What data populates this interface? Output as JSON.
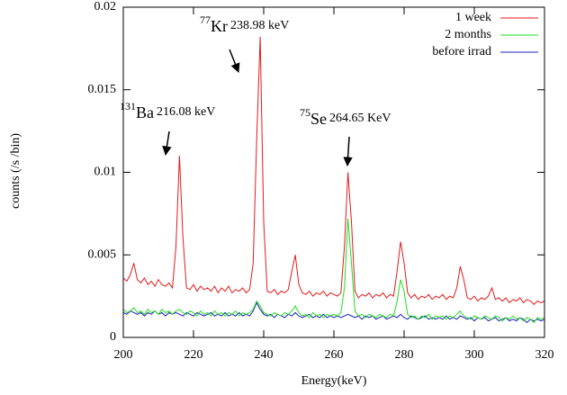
{
  "chart_data": {
    "type": "line",
    "x": [
      200,
      201,
      202,
      203,
      204,
      205,
      206,
      207,
      208,
      209,
      210,
      211,
      212,
      213,
      214,
      215,
      216,
      217,
      218,
      219,
      220,
      221,
      222,
      223,
      224,
      225,
      226,
      227,
      228,
      229,
      230,
      231,
      232,
      233,
      234,
      235,
      236,
      237,
      238,
      239,
      240,
      241,
      242,
      243,
      244,
      245,
      246,
      247,
      248,
      249,
      250,
      251,
      252,
      253,
      254,
      255,
      256,
      257,
      258,
      259,
      260,
      261,
      262,
      263,
      264,
      265,
      266,
      267,
      268,
      269,
      270,
      271,
      272,
      273,
      274,
      275,
      276,
      277,
      278,
      279,
      280,
      281,
      282,
      283,
      284,
      285,
      286,
      287,
      288,
      289,
      290,
      291,
      292,
      293,
      294,
      295,
      296,
      297,
      298,
      299,
      300,
      301,
      302,
      303,
      304,
      305,
      306,
      307,
      308,
      309,
      310,
      311,
      312,
      313,
      314,
      315,
      316,
      317,
      318,
      319,
      320
    ],
    "series": [
      {
        "name": "1 week",
        "color": "#e41a1c",
        "values": [
          0.0036,
          0.0034,
          0.0038,
          0.0045,
          0.0035,
          0.0033,
          0.0036,
          0.0032,
          0.0034,
          0.0031,
          0.0035,
          0.0032,
          0.0031,
          0.0033,
          0.003,
          0.0055,
          0.011,
          0.006,
          0.003,
          0.0029,
          0.0032,
          0.0028,
          0.0031,
          0.0029,
          0.003,
          0.0028,
          0.0031,
          0.0027,
          0.003,
          0.0028,
          0.0031,
          0.0027,
          0.0029,
          0.0028,
          0.003,
          0.0027,
          0.0029,
          0.0045,
          0.012,
          0.0182,
          0.007,
          0.0028,
          0.0027,
          0.0029,
          0.0026,
          0.0028,
          0.0027,
          0.0029,
          0.004,
          0.005,
          0.0032,
          0.0027,
          0.0026,
          0.0028,
          0.0025,
          0.0027,
          0.0026,
          0.0028,
          0.0025,
          0.0027,
          0.0026,
          0.0025,
          0.0027,
          0.0055,
          0.01,
          0.007,
          0.0028,
          0.0024,
          0.0026,
          0.0025,
          0.0027,
          0.0024,
          0.0026,
          0.0025,
          0.0027,
          0.0024,
          0.0026,
          0.0025,
          0.004,
          0.0058,
          0.0045,
          0.0027,
          0.0024,
          0.0026,
          0.0023,
          0.0025,
          0.0024,
          0.0026,
          0.0023,
          0.0025,
          0.0024,
          0.0026,
          0.0023,
          0.0025,
          0.0024,
          0.003,
          0.0043,
          0.0035,
          0.0024,
          0.0023,
          0.0025,
          0.0022,
          0.0024,
          0.0023,
          0.0025,
          0.003,
          0.0023,
          0.0024,
          0.0022,
          0.0024,
          0.0021,
          0.0023,
          0.0022,
          0.0024,
          0.0021,
          0.0023,
          0.0022,
          0.002,
          0.0022,
          0.0021,
          0.0022
        ]
      },
      {
        "name": "2 months",
        "color": "#22dd22",
        "values": [
          0.0017,
          0.0015,
          0.0016,
          0.0018,
          0.0015,
          0.0016,
          0.0014,
          0.0017,
          0.0015,
          0.0016,
          0.0014,
          0.0017,
          0.0015,
          0.0016,
          0.0014,
          0.0016,
          0.0017,
          0.0015,
          0.0014,
          0.0016,
          0.0015,
          0.0013,
          0.0016,
          0.0014,
          0.0015,
          0.0013,
          0.0016,
          0.0014,
          0.0015,
          0.0013,
          0.0015,
          0.0014,
          0.0016,
          0.0013,
          0.0015,
          0.0014,
          0.0015,
          0.0017,
          0.0022,
          0.0019,
          0.0015,
          0.0014,
          0.0013,
          0.0015,
          0.0014,
          0.0013,
          0.0015,
          0.0014,
          0.0016,
          0.0019,
          0.0015,
          0.0013,
          0.0014,
          0.0012,
          0.0015,
          0.0013,
          0.0014,
          0.0012,
          0.0014,
          0.0013,
          0.0014,
          0.0013,
          0.0015,
          0.003,
          0.0072,
          0.0045,
          0.0016,
          0.0013,
          0.0014,
          0.0012,
          0.0014,
          0.0013,
          0.0012,
          0.0014,
          0.0013,
          0.0012,
          0.0014,
          0.0013,
          0.0022,
          0.0035,
          0.0028,
          0.0014,
          0.0012,
          0.0013,
          0.0011,
          0.0013,
          0.0012,
          0.0014,
          0.0011,
          0.0013,
          0.0012,
          0.0013,
          0.0011,
          0.0013,
          0.0012,
          0.0014,
          0.0016,
          0.0013,
          0.0012,
          0.0011,
          0.0013,
          0.0012,
          0.0011,
          0.0013,
          0.0012,
          0.0011,
          0.0013,
          0.0012,
          0.001,
          0.0012,
          0.0011,
          0.0013,
          0.0011,
          0.0012,
          0.001,
          0.0012,
          0.0011,
          0.0009,
          0.0012,
          0.0011,
          0.0012
        ]
      },
      {
        "name": "before irrad",
        "color": "#1f1fbf",
        "values": [
          0.0015,
          0.0014,
          0.0016,
          0.0015,
          0.0014,
          0.0015,
          0.0013,
          0.0015,
          0.0014,
          0.0016,
          0.0014,
          0.0015,
          0.0013,
          0.0015,
          0.0014,
          0.0015,
          0.0014,
          0.0013,
          0.0015,
          0.0014,
          0.0013,
          0.0015,
          0.0014,
          0.0013,
          0.0014,
          0.0015,
          0.0013,
          0.0014,
          0.0013,
          0.0015,
          0.0013,
          0.0014,
          0.0013,
          0.0015,
          0.0013,
          0.0014,
          0.0013,
          0.0016,
          0.0021,
          0.0017,
          0.0014,
          0.0013,
          0.0014,
          0.0012,
          0.0014,
          0.0013,
          0.0012,
          0.0014,
          0.0013,
          0.0015,
          0.0013,
          0.0012,
          0.0013,
          0.0014,
          0.0012,
          0.0013,
          0.0012,
          0.0014,
          0.0012,
          0.0013,
          0.0012,
          0.0013,
          0.0012,
          0.0013,
          0.0014,
          0.0013,
          0.0012,
          0.0013,
          0.0011,
          0.0013,
          0.0012,
          0.0013,
          0.0011,
          0.0012,
          0.0013,
          0.0011,
          0.0012,
          0.0013,
          0.0012,
          0.0014,
          0.0012,
          0.0011,
          0.0013,
          0.0012,
          0.0011,
          0.0012,
          0.0013,
          0.0011,
          0.0012,
          0.0011,
          0.0012,
          0.0011,
          0.0013,
          0.0011,
          0.0012,
          0.0011,
          0.0013,
          0.0012,
          0.0011,
          0.0012,
          0.001,
          0.0012,
          0.0011,
          0.0012,
          0.001,
          0.0011,
          0.0012,
          0.001,
          0.0011,
          0.0012,
          0.001,
          0.0011,
          0.001,
          0.0012,
          0.0011,
          0.0009,
          0.0011,
          0.001,
          0.0011,
          0.001,
          0.0011
        ]
      }
    ],
    "xlim": [
      200,
      320
    ],
    "xticks": [
      200,
      220,
      240,
      260,
      280,
      300,
      320
    ],
    "ylim": [
      0,
      0.02
    ],
    "yticks": [
      0,
      0.005,
      0.01,
      0.015,
      0.02
    ],
    "xlabel": "Energy(keV)",
    "ylabel": "counts (/s /bin)",
    "legend": "upper right",
    "annotations": [
      {
        "superscript": "131",
        "label": "Ba",
        "energy": "216.08 keV"
      },
      {
        "superscript": "77",
        "label": "Kr",
        "energy": "238.98 keV"
      },
      {
        "superscript": "75",
        "label": "Se",
        "energy": "264.65 KeV"
      }
    ]
  }
}
